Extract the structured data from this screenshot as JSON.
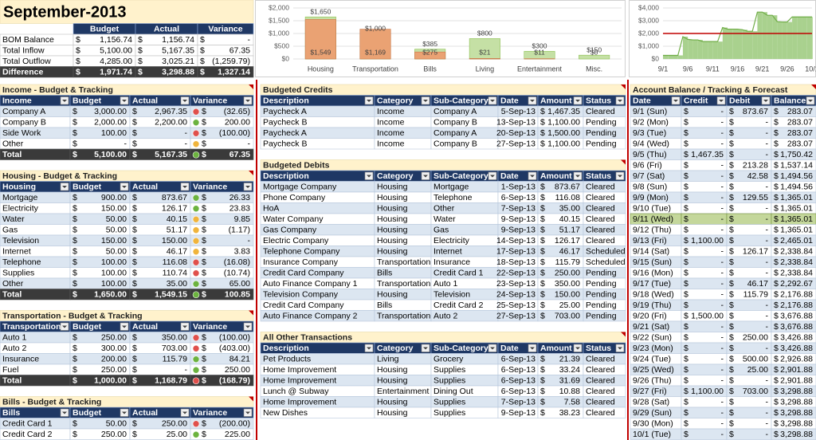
{
  "currency_symbol": "$",
  "summary": {
    "title": "September-2013",
    "columns": [
      "Budget",
      "Actual",
      "Variance"
    ],
    "rows": [
      [
        "BOM Balance",
        "1,156.74",
        "1,156.74",
        "-"
      ],
      [
        "Total Inflow",
        "5,100.00",
        "5,167.35",
        "67.35"
      ],
      [
        "Total Outflow",
        "4,285.00",
        "3,025.21",
        "(1,259.79)"
      ],
      [
        "Difference",
        "1,971.74",
        "3,298.88",
        "1,327.14"
      ]
    ]
  },
  "budget_tables": [
    {
      "title": "Income - Budget & Tracking",
      "columns": [
        "Income",
        "Budget",
        "Actual",
        "Variance"
      ],
      "rows": [
        [
          "Company A",
          "3,000.00",
          "2,967.35",
          "(32.65)"
        ],
        [
          "Company B",
          "2,000.00",
          "2,200.00",
          "200.00"
        ],
        [
          "Side Work",
          "100.00",
          "-",
          "(100.00)"
        ],
        [
          "Other",
          "-",
          "-",
          "-"
        ]
      ],
      "icon_colors": [
        "#e0504c",
        "#6cb33f",
        "#e0504c",
        "#f0b43c"
      ],
      "total": [
        "Total",
        "5,100.00",
        "5,167.35",
        "67.35"
      ],
      "total_icon_color": "#6cb33f"
    },
    {
      "title": "Housing - Budget & Tracking",
      "columns": [
        "Housing",
        "Budget",
        "Actual",
        "Variance"
      ],
      "rows": [
        [
          "Mortgage",
          "900.00",
          "873.67",
          "26.33"
        ],
        [
          "Electricity",
          "150.00",
          "126.17",
          "23.83"
        ],
        [
          "Water",
          "50.00",
          "40.15",
          "9.85"
        ],
        [
          "Gas",
          "50.00",
          "51.17",
          "(1.17)"
        ],
        [
          "Television",
          "150.00",
          "150.00",
          "-"
        ],
        [
          "Internet",
          "50.00",
          "46.17",
          "3.83"
        ],
        [
          "Telephone",
          "100.00",
          "116.08",
          "(16.08)"
        ],
        [
          "Supplies",
          "100.00",
          "110.74",
          "(10.74)"
        ],
        [
          "Other",
          "100.00",
          "35.00",
          "65.00"
        ]
      ],
      "icon_colors": [
        "#6cb33f",
        "#6cb33f",
        "#f0b43c",
        "#f0b43c",
        "#f0b43c",
        "#f0b43c",
        "#e0504c",
        "#e0504c",
        "#6cb33f"
      ],
      "total": [
        "Total",
        "1,650.00",
        "1,549.15",
        "100.85"
      ],
      "total_icon_color": "#6cb33f"
    },
    {
      "title": "Transportation - Budget & Tracking",
      "columns": [
        "Transportation",
        "Budget",
        "Actual",
        "Variance"
      ],
      "rows": [
        [
          "Auto 1",
          "250.00",
          "350.00",
          "(100.00)"
        ],
        [
          "Auto 2",
          "300.00",
          "703.00",
          "(403.00)"
        ],
        [
          "Insurance",
          "200.00",
          "115.79",
          "84.21"
        ],
        [
          "Fuel",
          "250.00",
          "-",
          "250.00"
        ]
      ],
      "icon_colors": [
        "#e0504c",
        "#e0504c",
        "#6cb33f",
        "#6cb33f"
      ],
      "total": [
        "Total",
        "1,000.00",
        "1,168.79",
        "(168.79)"
      ],
      "total_icon_color": "#e0504c"
    },
    {
      "title": "Bills - Budget & Tracking",
      "columns": [
        "Bills",
        "Budget",
        "Actual",
        "Variance"
      ],
      "rows": [
        [
          "Credit Card 1",
          "50.00",
          "250.00",
          "(200.00)"
        ],
        [
          "Credit Card 2",
          "250.00",
          "25.00",
          "225.00"
        ]
      ],
      "icon_colors": [
        "#e0504c",
        "#6cb33f"
      ]
    }
  ],
  "ledgers": [
    {
      "title": "Budgeted Credits",
      "columns": [
        "Description",
        "Category",
        "Sub-Category",
        "Date",
        "Amount",
        "Status"
      ],
      "rows": [
        [
          "Paycheck A",
          "Income",
          "Company A",
          "5-Sep-13",
          "1,467.35",
          "Cleared"
        ],
        [
          "Paycheck B",
          "Income",
          "Company B",
          "13-Sep-13",
          "1,100.00",
          "Pending"
        ],
        [
          "Paycheck A",
          "Income",
          "Company A",
          "20-Sep-13",
          "1,500.00",
          "Pending"
        ],
        [
          "Paycheck B",
          "Income",
          "Company B",
          "27-Sep-13",
          "1,100.00",
          "Pending"
        ]
      ]
    },
    {
      "title": "Budgeted Debits",
      "columns": [
        "Description",
        "Category",
        "Sub-Category",
        "Date",
        "Amount",
        "Status"
      ],
      "rows": [
        [
          "Mortgage Company",
          "Housing",
          "Mortgage",
          "1-Sep-13",
          "873.67",
          "Cleared"
        ],
        [
          "Phone Company",
          "Housing",
          "Telephone",
          "6-Sep-13",
          "116.08",
          "Cleared"
        ],
        [
          "HoA",
          "Housing",
          "Other",
          "7-Sep-13",
          "35.00",
          "Cleared"
        ],
        [
          "Water Company",
          "Housing",
          "Water",
          "9-Sep-13",
          "40.15",
          "Cleared"
        ],
        [
          "Gas Company",
          "Housing",
          "Gas",
          "9-Sep-13",
          "51.17",
          "Cleared"
        ],
        [
          "Electric Company",
          "Housing",
          "Electricity",
          "14-Sep-13",
          "126.17",
          "Cleared"
        ],
        [
          "Telephone Company",
          "Housing",
          "Internet",
          "17-Sep-13",
          "46.17",
          "Scheduled"
        ],
        [
          "Insurance Company",
          "Transportation",
          "Insurance",
          "18-Sep-13",
          "115.79",
          "Scheduled"
        ],
        [
          "Credit Card Company",
          "Bills",
          "Credit Card 1",
          "22-Sep-13",
          "250.00",
          "Pending"
        ],
        [
          "Auto Finance Company 1",
          "Transportation",
          "Auto 1",
          "23-Sep-13",
          "350.00",
          "Pending"
        ],
        [
          "Television Company",
          "Housing",
          "Television",
          "24-Sep-13",
          "150.00",
          "Pending"
        ],
        [
          "Credit Card Company",
          "Bills",
          "Credit Card 2",
          "25-Sep-13",
          "25.00",
          "Pending"
        ],
        [
          "Auto Finance Company 2",
          "Transportation",
          "Auto 2",
          "27-Sep-13",
          "703.00",
          "Pending"
        ]
      ]
    },
    {
      "title": "All Other Transactions",
      "columns": [
        "Description",
        "Category",
        "Sub-Category",
        "Date",
        "Amount",
        "Status"
      ],
      "rows": [
        [
          "Pet Products",
          "Living",
          "Grocery",
          "6-Sep-13",
          "21.39",
          "Cleared"
        ],
        [
          "Home Improvement",
          "Housing",
          "Supplies",
          "6-Sep-13",
          "33.24",
          "Cleared"
        ],
        [
          "Home Improvement",
          "Housing",
          "Supplies",
          "6-Sep-13",
          "31.69",
          "Cleared"
        ],
        [
          "Lunch @ Subway",
          "Entertainment",
          "Dining Out",
          "6-Sep-13",
          "10.88",
          "Cleared"
        ],
        [
          "Home Improvement",
          "Housing",
          "Supplies",
          "7-Sep-13",
          "7.58",
          "Cleared"
        ],
        [
          "New Dishes",
          "Housing",
          "Supplies",
          "9-Sep-13",
          "38.23",
          "Cleared"
        ]
      ]
    }
  ],
  "forecast": {
    "title": "Account Balance / Tracking & Forecast",
    "columns": [
      "Date",
      "Credit",
      "Debit",
      "Balance"
    ],
    "highlight_row": 10,
    "rows": [
      [
        "9/1 (Sun)",
        "-",
        "873.67",
        "283.07"
      ],
      [
        "9/2 (Mon)",
        "-",
        "-",
        "283.07"
      ],
      [
        "9/3 (Tue)",
        "-",
        "-",
        "283.07"
      ],
      [
        "9/4 (Wed)",
        "-",
        "-",
        "283.07"
      ],
      [
        "9/5 (Thu)",
        "1,467.35",
        "-",
        "1,750.42"
      ],
      [
        "9/6 (Fri)",
        "-",
        "213.28",
        "1,537.14"
      ],
      [
        "9/7 (Sat)",
        "-",
        "42.58",
        "1,494.56"
      ],
      [
        "9/8 (Sun)",
        "-",
        "-",
        "1,494.56"
      ],
      [
        "9/9 (Mon)",
        "-",
        "129.55",
        "1,365.01"
      ],
      [
        "9/10 (Tue)",
        "-",
        "-",
        "1,365.01"
      ],
      [
        "9/11 (Wed)",
        "-",
        "-",
        "1,365.01"
      ],
      [
        "9/12 (Thu)",
        "-",
        "-",
        "1,365.01"
      ],
      [
        "9/13 (Fri)",
        "1,100.00",
        "-",
        "2,465.01"
      ],
      [
        "9/14 (Sat)",
        "-",
        "126.17",
        "2,338.84"
      ],
      [
        "9/15 (Sun)",
        "-",
        "-",
        "2,338.84"
      ],
      [
        "9/16 (Mon)",
        "-",
        "-",
        "2,338.84"
      ],
      [
        "9/17 (Tue)",
        "-",
        "46.17",
        "2,292.67"
      ],
      [
        "9/18 (Wed)",
        "-",
        "115.79",
        "2,176.88"
      ],
      [
        "9/19 (Thu)",
        "-",
        "-",
        "2,176.88"
      ],
      [
        "9/20 (Fri)",
        "1,500.00",
        "-",
        "3,676.88"
      ],
      [
        "9/21 (Sat)",
        "-",
        "-",
        "3,676.88"
      ],
      [
        "9/22 (Sun)",
        "-",
        "250.00",
        "3,426.88"
      ],
      [
        "9/23 (Mon)",
        "-",
        "-",
        "3,426.88"
      ],
      [
        "9/24 (Tue)",
        "-",
        "500.00",
        "2,926.88"
      ],
      [
        "9/25 (Wed)",
        "-",
        "25.00",
        "2,901.88"
      ],
      [
        "9/26 (Thu)",
        "-",
        "-",
        "2,901.88"
      ],
      [
        "9/27 (Fri)",
        "1,100.00",
        "703.00",
        "3,298.88"
      ],
      [
        "9/28 (Sat)",
        "-",
        "-",
        "3,298.88"
      ],
      [
        "9/29 (Sun)",
        "-",
        "-",
        "3,298.88"
      ],
      [
        "9/30 (Mon)",
        "-",
        "-",
        "3,298.88"
      ],
      [
        "10/1 (Tue)",
        "-",
        "-",
        "3,298.88"
      ]
    ]
  },
  "chart_data": [
    {
      "type": "bar",
      "categories": [
        "Housing",
        "Transportation",
        "Bills",
        "Living",
        "Entertainment",
        "Misc."
      ],
      "series": [
        {
          "color": "#c5e0a5",
          "values": [
            1650,
            1000,
            385,
            800,
            300,
            150
          ],
          "value_labels": [
            "$1,650",
            "$1,000",
            "$385",
            "$800",
            "$300",
            "$150"
          ]
        },
        {
          "color": "#eaa273",
          "values": [
            1549,
            1169,
            275,
            21,
            11,
            0
          ],
          "value_labels": [
            "$1,549",
            "$1,169",
            "$275",
            "$21",
            "$11",
            "$0"
          ]
        }
      ],
      "ylim": [
        0,
        2000
      ],
      "yticks": [
        {
          "value": 0,
          "label": "$0"
        },
        {
          "value": 500,
          "label": "$500"
        },
        {
          "value": 1000,
          "label": "$1,000"
        },
        {
          "value": 1500,
          "label": "$1,500"
        },
        {
          "value": 2000,
          "label": "$2,000"
        }
      ],
      "grid": true
    },
    {
      "type": "area",
      "categories": [
        "9/1",
        null,
        null,
        null,
        null,
        "9/6",
        null,
        null,
        null,
        null,
        "9/11",
        null,
        null,
        null,
        null,
        "9/16",
        null,
        null,
        null,
        null,
        "9/21",
        null,
        null,
        null,
        null,
        "9/26",
        null,
        null,
        null,
        null,
        "10/1"
      ],
      "series": [
        {
          "color": "#70ad47",
          "values": [
            283.07,
            283.07,
            283.07,
            283.07,
            1750.42,
            1537.14,
            1494.56,
            1494.56,
            1365.01,
            1365.01,
            1365.01,
            1365.01,
            2465.01,
            2338.84,
            2338.84,
            2338.84,
            2292.67,
            2176.88,
            2176.88,
            3676.88,
            3676.88,
            3426.88,
            3426.88,
            2926.88,
            2901.88,
            2901.88,
            3298.88,
            3298.88,
            3298.88,
            3298.88,
            3298.88
          ]
        }
      ],
      "reference_line": {
        "value": 2000,
        "color": "#c00000"
      },
      "ylim": [
        0,
        4000
      ],
      "yticks": [
        {
          "value": 0,
          "label": "$0"
        },
        {
          "value": 1000,
          "label": "$1,000"
        },
        {
          "value": 2000,
          "label": "$2,000"
        },
        {
          "value": 3000,
          "label": "$3,000"
        },
        {
          "value": 4000,
          "label": "$4,000"
        }
      ],
      "grid": true
    }
  ]
}
